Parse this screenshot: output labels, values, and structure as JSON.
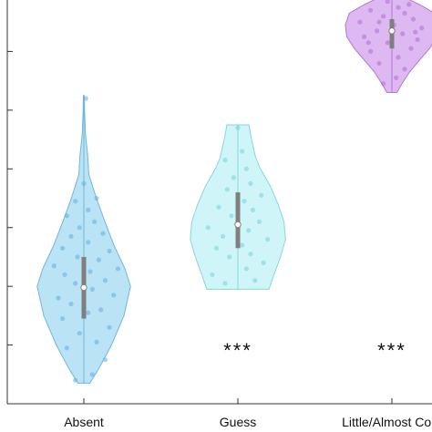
{
  "chart_data": {
    "type": "violin",
    "categories": [
      "Absent",
      "Guess",
      "Little/Almost Conf"
    ],
    "ylim": [
      0,
      7
    ],
    "ytick_values": [
      1,
      2,
      3,
      4,
      5,
      6
    ],
    "significance": [
      "",
      "***",
      "***"
    ],
    "colors": {
      "fills": [
        "#a9dcf2",
        "#c4f3f6",
        "#d6a6ec"
      ],
      "edges": [
        "#6fb8d8",
        "#86d6de",
        "#b178d3"
      ],
      "points": [
        "#5fb0dc",
        "#6fd4dc",
        "#b36ad6"
      ],
      "box": "#7f7f7f",
      "axis": "#333333"
    },
    "series": [
      {
        "min": 0.35,
        "max": 5.25,
        "q1": 1.45,
        "median": 1.98,
        "q3": 2.5,
        "density": [
          [
            0.35,
            0.12
          ],
          [
            0.6,
            0.3
          ],
          [
            1.0,
            0.55
          ],
          [
            1.5,
            0.8
          ],
          [
            2.0,
            0.93
          ],
          [
            2.3,
            0.82
          ],
          [
            2.7,
            0.6
          ],
          [
            3.1,
            0.42
          ],
          [
            3.5,
            0.25
          ],
          [
            3.9,
            0.1
          ],
          [
            4.2,
            0.08
          ],
          [
            4.6,
            0.03
          ],
          [
            5.0,
            0.015
          ],
          [
            5.25,
            0.01
          ]
        ],
        "points": [
          [
            -0.2,
            0.4
          ],
          [
            0.2,
            0.5
          ],
          [
            0.5,
            0.75
          ],
          [
            -0.4,
            0.95
          ],
          [
            0.3,
            1.05
          ],
          [
            -0.1,
            1.2
          ],
          [
            0.6,
            1.3
          ],
          [
            -0.5,
            1.45
          ],
          [
            0.1,
            1.55
          ],
          [
            0.4,
            1.6
          ],
          [
            -0.3,
            1.7
          ],
          [
            -0.6,
            1.8
          ],
          [
            0.7,
            1.85
          ],
          [
            0.2,
            1.95
          ],
          [
            -0.2,
            2.05
          ],
          [
            0.5,
            2.1
          ],
          [
            -0.45,
            2.2
          ],
          [
            0.15,
            2.25
          ],
          [
            0.8,
            2.3
          ],
          [
            -0.7,
            2.35
          ],
          [
            0.35,
            2.45
          ],
          [
            -0.15,
            2.5
          ],
          [
            0.6,
            2.6
          ],
          [
            -0.5,
            2.65
          ],
          [
            0.1,
            2.75
          ],
          [
            -0.3,
            2.85
          ],
          [
            0.45,
            2.9
          ],
          [
            -0.1,
            3.0
          ],
          [
            0.25,
            3.1
          ],
          [
            -0.4,
            3.2
          ],
          [
            0.1,
            3.3
          ],
          [
            -0.2,
            3.45
          ],
          [
            0.3,
            3.5
          ],
          [
            0.0,
            3.75
          ],
          [
            0.05,
            5.2
          ]
        ]
      },
      {
        "min": 1.95,
        "max": 4.75,
        "q1": 2.65,
        "median": 3.05,
        "q3": 3.6,
        "density": [
          [
            1.95,
            0.62
          ],
          [
            2.2,
            0.72
          ],
          [
            2.5,
            0.85
          ],
          [
            2.8,
            0.95
          ],
          [
            3.1,
            0.92
          ],
          [
            3.4,
            0.8
          ],
          [
            3.7,
            0.65
          ],
          [
            4.0,
            0.45
          ],
          [
            4.2,
            0.35
          ],
          [
            4.4,
            0.3
          ],
          [
            4.6,
            0.25
          ],
          [
            4.75,
            0.22
          ]
        ],
        "points": [
          [
            -0.3,
            2.05
          ],
          [
            0.4,
            2.1
          ],
          [
            -0.6,
            2.2
          ],
          [
            0.2,
            2.3
          ],
          [
            0.6,
            2.4
          ],
          [
            -0.2,
            2.5
          ],
          [
            0.3,
            2.55
          ],
          [
            -0.5,
            2.65
          ],
          [
            0.1,
            2.7
          ],
          [
            0.7,
            2.8
          ],
          [
            -0.35,
            2.85
          ],
          [
            0.25,
            2.95
          ],
          [
            -0.7,
            3.0
          ],
          [
            0.5,
            3.1
          ],
          [
            -0.15,
            3.2
          ],
          [
            0.35,
            3.3
          ],
          [
            -0.45,
            3.35
          ],
          [
            0.15,
            3.45
          ],
          [
            0.55,
            3.55
          ],
          [
            -0.25,
            3.65
          ],
          [
            0.3,
            3.75
          ],
          [
            -0.1,
            3.85
          ],
          [
            0.2,
            4.0
          ],
          [
            -0.3,
            4.15
          ],
          [
            0.1,
            4.3
          ],
          [
            0.0,
            4.7
          ]
        ]
      },
      {
        "min": 5.3,
        "max": 6.95,
        "q1": 6.05,
        "median": 6.35,
        "q3": 6.55,
        "density": [
          [
            5.3,
            0.1
          ],
          [
            5.45,
            0.2
          ],
          [
            5.65,
            0.35
          ],
          [
            5.85,
            0.55
          ],
          [
            6.05,
            0.75
          ],
          [
            6.25,
            0.9
          ],
          [
            6.45,
            0.93
          ],
          [
            6.65,
            0.85
          ],
          [
            6.8,
            0.55
          ],
          [
            6.9,
            0.3
          ],
          [
            6.95,
            0.15
          ]
        ],
        "points": [
          [
            -0.2,
            5.45
          ],
          [
            0.1,
            5.55
          ],
          [
            0.3,
            5.7
          ],
          [
            -0.3,
            5.8
          ],
          [
            0.15,
            5.9
          ],
          [
            -0.5,
            6.0
          ],
          [
            0.45,
            6.05
          ],
          [
            -0.1,
            6.15
          ],
          [
            0.6,
            6.2
          ],
          [
            -0.65,
            6.25
          ],
          [
            0.25,
            6.3
          ],
          [
            -0.35,
            6.35
          ],
          [
            0.7,
            6.4
          ],
          [
            0.05,
            6.45
          ],
          [
            -0.75,
            6.5
          ],
          [
            0.5,
            6.55
          ],
          [
            -0.2,
            6.6
          ],
          [
            0.3,
            6.65
          ],
          [
            -0.5,
            6.7
          ],
          [
            0.15,
            6.75
          ],
          [
            0.4,
            6.8
          ],
          [
            -0.1,
            6.85
          ],
          [
            0.2,
            6.92
          ],
          [
            -0.3,
            6.5
          ],
          [
            0.55,
            6.33
          ],
          [
            -0.55,
            6.15
          ]
        ]
      }
    ]
  }
}
